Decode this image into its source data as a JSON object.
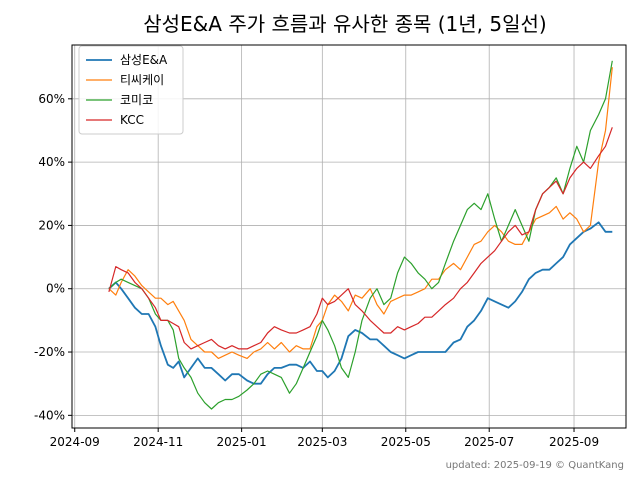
{
  "chart_data": {
    "type": "line",
    "title": "삼성E&A 주가 흐름과 유사한 종목 (1년, 5일선)",
    "footer": "updated: 2025-09-19 © QuantKang",
    "xlabel": "",
    "ylabel": "",
    "x_range": [
      "2024-08-30",
      "2025-10-09"
    ],
    "ylim": [
      -44,
      77
    ],
    "y_ticks": [
      -40,
      -20,
      0,
      20,
      40,
      60
    ],
    "y_tick_labels": [
      "-40%",
      "-20%",
      "0%",
      "20%",
      "40%",
      "60%"
    ],
    "x_ticks": [
      "2024-09-01",
      "2024-11-01",
      "2025-01-01",
      "2025-03-01",
      "2025-05-01",
      "2025-07-01",
      "2025-09-01"
    ],
    "x_tick_labels": [
      "2024-09",
      "2024-11",
      "2025-01",
      "2025-03",
      "2025-05",
      "2025-07",
      "2025-09"
    ],
    "grid": true,
    "legend_position": "top-left",
    "series": [
      {
        "name": "삼성E&A",
        "color": "#1f77b4",
        "x": [
          "2024-09-26",
          "2024-10-01",
          "2024-10-05",
          "2024-10-10",
          "2024-10-15",
          "2024-10-20",
          "2024-10-25",
          "2024-10-30",
          "2024-11-03",
          "2024-11-08",
          "2024-11-12",
          "2024-11-16",
          "2024-11-20",
          "2024-11-25",
          "2024-11-30",
          "2024-12-05",
          "2024-12-10",
          "2024-12-15",
          "2024-12-20",
          "2024-12-25",
          "2024-12-30",
          "2025-01-05",
          "2025-01-10",
          "2025-01-15",
          "2025-01-20",
          "2025-01-25",
          "2025-01-30",
          "2025-02-05",
          "2025-02-10",
          "2025-02-15",
          "2025-02-20",
          "2025-02-25",
          "2025-03-01",
          "2025-03-05",
          "2025-03-10",
          "2025-03-15",
          "2025-03-20",
          "2025-03-25",
          "2025-03-30",
          "2025-04-05",
          "2025-04-10",
          "2025-04-15",
          "2025-04-20",
          "2025-04-25",
          "2025-04-30",
          "2025-05-05",
          "2025-05-10",
          "2025-05-15",
          "2025-05-20",
          "2025-05-25",
          "2025-05-30",
          "2025-06-05",
          "2025-06-10",
          "2025-06-15",
          "2025-06-20",
          "2025-06-25",
          "2025-06-30",
          "2025-07-05",
          "2025-07-10",
          "2025-07-15",
          "2025-07-20",
          "2025-07-25",
          "2025-07-30",
          "2025-08-04",
          "2025-08-09",
          "2025-08-14",
          "2025-08-19",
          "2025-08-24",
          "2025-08-29",
          "2025-09-03",
          "2025-09-08",
          "2025-09-13",
          "2025-09-19",
          "2025-09-24",
          "2025-09-29"
        ],
        "values": [
          0,
          2,
          0,
          -3,
          -6,
          -8,
          -8,
          -12,
          -18,
          -24,
          -25,
          -23,
          -28,
          -25,
          -22,
          -25,
          -25,
          -27,
          -29,
          -27,
          -27,
          -29,
          -30,
          -30,
          -27,
          -25,
          -25,
          -24,
          -24,
          -25,
          -23,
          -26,
          -26,
          -28,
          -26,
          -22,
          -15,
          -13,
          -14,
          -16,
          -16,
          -18,
          -20,
          -21,
          -22,
          -21,
          -20,
          -20,
          -20,
          -20,
          -20,
          -17,
          -16,
          -12,
          -10,
          -7,
          -3,
          -4,
          -5,
          -6,
          -4,
          -1,
          3,
          5,
          6,
          6,
          8,
          10,
          14,
          16,
          18,
          19,
          21,
          18,
          18
        ]
      },
      {
        "name": "티씨케이",
        "color": "#ff7f0e",
        "x": [
          "2024-09-26",
          "2024-10-01",
          "2024-10-05",
          "2024-10-10",
          "2024-10-15",
          "2024-10-20",
          "2024-10-25",
          "2024-10-30",
          "2024-11-03",
          "2024-11-08",
          "2024-11-12",
          "2024-11-16",
          "2024-11-20",
          "2024-11-25",
          "2024-11-30",
          "2024-12-05",
          "2024-12-10",
          "2024-12-15",
          "2024-12-20",
          "2024-12-25",
          "2024-12-30",
          "2025-01-05",
          "2025-01-10",
          "2025-01-15",
          "2025-01-20",
          "2025-01-25",
          "2025-01-30",
          "2025-02-05",
          "2025-02-10",
          "2025-02-15",
          "2025-02-20",
          "2025-02-25",
          "2025-03-01",
          "2025-03-05",
          "2025-03-10",
          "2025-03-15",
          "2025-03-20",
          "2025-03-25",
          "2025-03-30",
          "2025-04-05",
          "2025-04-10",
          "2025-04-15",
          "2025-04-20",
          "2025-04-25",
          "2025-04-30",
          "2025-05-05",
          "2025-05-10",
          "2025-05-15",
          "2025-05-20",
          "2025-05-25",
          "2025-05-30",
          "2025-06-05",
          "2025-06-10",
          "2025-06-15",
          "2025-06-20",
          "2025-06-25",
          "2025-06-30",
          "2025-07-05",
          "2025-07-10",
          "2025-07-15",
          "2025-07-20",
          "2025-07-25",
          "2025-07-30",
          "2025-08-04",
          "2025-08-09",
          "2025-08-14",
          "2025-08-19",
          "2025-08-24",
          "2025-08-29",
          "2025-09-03",
          "2025-09-08",
          "2025-09-13",
          "2025-09-19",
          "2025-09-24",
          "2025-09-29"
        ],
        "values": [
          0,
          -2,
          2,
          6,
          4,
          1,
          -1,
          -3,
          -3,
          -5,
          -4,
          -7,
          -10,
          -16,
          -18,
          -20,
          -20,
          -22,
          -21,
          -20,
          -21,
          -22,
          -20,
          -19,
          -17,
          -19,
          -17,
          -20,
          -18,
          -19,
          -19,
          -12,
          -10,
          -5,
          -2,
          -4,
          -7,
          -2,
          -3,
          0,
          -5,
          -8,
          -4,
          -3,
          -2,
          -2,
          -1,
          0,
          3,
          3,
          6,
          8,
          6,
          10,
          14,
          15,
          18,
          20,
          18,
          15,
          14,
          14,
          18,
          22,
          23,
          24,
          26,
          22,
          24,
          22,
          18,
          20,
          40,
          50,
          70
        ]
      },
      {
        "name": "코미코",
        "color": "#2ca02c",
        "x": [
          "2024-09-26",
          "2024-10-01",
          "2024-10-05",
          "2024-10-10",
          "2024-10-15",
          "2024-10-20",
          "2024-10-25",
          "2024-10-30",
          "2024-11-03",
          "2024-11-08",
          "2024-11-12",
          "2024-11-16",
          "2024-11-20",
          "2024-11-25",
          "2024-11-30",
          "2024-12-05",
          "2024-12-10",
          "2024-12-15",
          "2024-12-20",
          "2024-12-25",
          "2024-12-30",
          "2025-01-05",
          "2025-01-10",
          "2025-01-15",
          "2025-01-20",
          "2025-01-25",
          "2025-01-30",
          "2025-02-05",
          "2025-02-10",
          "2025-02-15",
          "2025-02-20",
          "2025-02-25",
          "2025-03-01",
          "2025-03-05",
          "2025-03-10",
          "2025-03-15",
          "2025-03-20",
          "2025-03-25",
          "2025-03-30",
          "2025-04-05",
          "2025-04-10",
          "2025-04-15",
          "2025-04-20",
          "2025-04-25",
          "2025-04-30",
          "2025-05-05",
          "2025-05-10",
          "2025-05-15",
          "2025-05-20",
          "2025-05-25",
          "2025-05-30",
          "2025-06-05",
          "2025-06-10",
          "2025-06-15",
          "2025-06-20",
          "2025-06-25",
          "2025-06-30",
          "2025-07-05",
          "2025-07-10",
          "2025-07-15",
          "2025-07-20",
          "2025-07-25",
          "2025-07-30",
          "2025-08-04",
          "2025-08-09",
          "2025-08-14",
          "2025-08-19",
          "2025-08-24",
          "2025-08-29",
          "2025-09-03",
          "2025-09-08",
          "2025-09-13",
          "2025-09-19",
          "2025-09-24",
          "2025-09-29"
        ],
        "values": [
          0,
          2,
          3,
          2,
          1,
          0,
          -3,
          -8,
          -10,
          -10,
          -13,
          -22,
          -25,
          -28,
          -33,
          -36,
          -38,
          -36,
          -35,
          -35,
          -34,
          -32,
          -30,
          -27,
          -26,
          -27,
          -28,
          -33,
          -30,
          -25,
          -20,
          -15,
          -10,
          -13,
          -18,
          -25,
          -28,
          -20,
          -10,
          -3,
          0,
          -5,
          -3,
          5,
          10,
          8,
          5,
          3,
          0,
          2,
          8,
          15,
          20,
          25,
          27,
          25,
          30,
          22,
          15,
          20,
          25,
          20,
          15,
          25,
          30,
          32,
          35,
          30,
          38,
          45,
          40,
          50,
          55,
          60,
          72
        ]
      },
      {
        "name": "KCC",
        "color": "#d62728",
        "x": [
          "2024-09-26",
          "2024-10-01",
          "2024-10-05",
          "2024-10-10",
          "2024-10-15",
          "2024-10-20",
          "2024-10-25",
          "2024-10-30",
          "2024-11-03",
          "2024-11-08",
          "2024-11-12",
          "2024-11-16",
          "2024-11-20",
          "2024-11-25",
          "2024-11-30",
          "2024-12-05",
          "2024-12-10",
          "2024-12-15",
          "2024-12-20",
          "2024-12-25",
          "2024-12-30",
          "2025-01-05",
          "2025-01-10",
          "2025-01-15",
          "2025-01-20",
          "2025-01-25",
          "2025-01-30",
          "2025-02-05",
          "2025-02-10",
          "2025-02-15",
          "2025-02-20",
          "2025-02-25",
          "2025-03-01",
          "2025-03-05",
          "2025-03-10",
          "2025-03-15",
          "2025-03-20",
          "2025-03-25",
          "2025-03-30",
          "2025-04-05",
          "2025-04-10",
          "2025-04-15",
          "2025-04-20",
          "2025-04-25",
          "2025-04-30",
          "2025-05-05",
          "2025-05-10",
          "2025-05-15",
          "2025-05-20",
          "2025-05-25",
          "2025-05-30",
          "2025-06-05",
          "2025-06-10",
          "2025-06-15",
          "2025-06-20",
          "2025-06-25",
          "2025-06-30",
          "2025-07-05",
          "2025-07-10",
          "2025-07-15",
          "2025-07-20",
          "2025-07-25",
          "2025-07-30",
          "2025-08-04",
          "2025-08-09",
          "2025-08-14",
          "2025-08-19",
          "2025-08-24",
          "2025-08-29",
          "2025-09-03",
          "2025-09-08",
          "2025-09-13",
          "2025-09-19",
          "2025-09-24",
          "2025-09-29"
        ],
        "values": [
          -1,
          7,
          6,
          5,
          2,
          0,
          -3,
          -6,
          -10,
          -10,
          -11,
          -12,
          -17,
          -19,
          -18,
          -17,
          -16,
          -18,
          -19,
          -18,
          -19,
          -19,
          -18,
          -17,
          -14,
          -12,
          -13,
          -14,
          -14,
          -13,
          -12,
          -8,
          -3,
          -5,
          -4,
          -2,
          0,
          -5,
          -7,
          -10,
          -12,
          -14,
          -14,
          -12,
          -13,
          -12,
          -11,
          -9,
          -9,
          -7,
          -5,
          -3,
          0,
          2,
          5,
          8,
          10,
          12,
          15,
          18,
          20,
          17,
          18,
          25,
          30,
          32,
          34,
          30,
          35,
          38,
          40,
          38,
          42,
          45,
          51
        ]
      }
    ]
  }
}
